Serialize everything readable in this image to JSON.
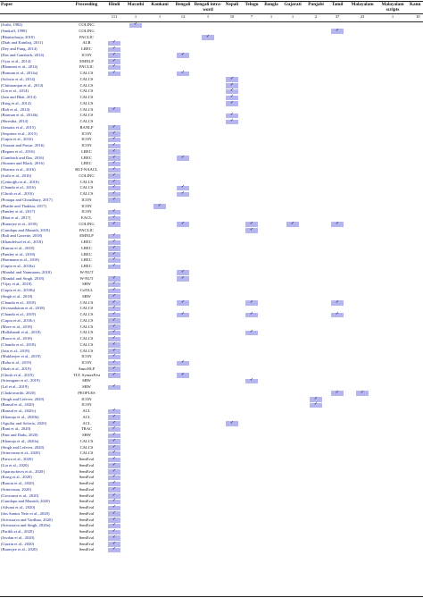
{
  "columns": {
    "paper": "Paper",
    "proceeding": "Proceeding",
    "languages": [
      {
        "key": "hindi",
        "label": "Hindi",
        "count": "111"
      },
      {
        "key": "marathi",
        "label": "Marathi",
        "count": "1"
      },
      {
        "key": "konkani",
        "label": "Konkani",
        "count": "1"
      },
      {
        "key": "bengali",
        "label": "Bengali",
        "count": "12"
      },
      {
        "key": "bengali_iw",
        "label": "Bengali intra-word",
        "count": "1"
      },
      {
        "key": "nepali",
        "label": "Nepali",
        "count": "10"
      },
      {
        "key": "telugu",
        "label": "Telugu",
        "count": "7"
      },
      {
        "key": "bangla",
        "label": "Bangla",
        "count": "1"
      },
      {
        "key": "gujarati",
        "label": "Gujarati",
        "count": "1"
      },
      {
        "key": "punjabi",
        "label": "Punjabi",
        "count": "2"
      },
      {
        "key": "tamil",
        "label": "Tamil",
        "count": "37"
      },
      {
        "key": "malayalam",
        "label": "Malayalam",
        "count": "23"
      },
      {
        "key": "malayalam_s",
        "label": "Malayalam scripts",
        "count": "1"
      },
      {
        "key": "kann",
        "label": "Kann",
        "count": "10"
      }
    ]
  },
  "check_symbol": "✓",
  "rows": [
    {
      "paper": "(Joshi, 1982)",
      "proc": "COLING",
      "langs": [
        "marathi"
      ]
    },
    {
      "paper": "(Sankoff, 1998)",
      "proc": "COLING",
      "langs": [
        "tamil"
      ]
    },
    {
      "paper": "(Bhattacharja, 2010)",
      "proc": "PACLIC",
      "langs": [
        "bengali_iw"
      ]
    },
    {
      "paper": "(Diab and Kamboj, 2011)",
      "proc": "ALR",
      "langs": [
        "hindi"
      ]
    },
    {
      "paper": "(Dey and Fung, 2014)",
      "proc": "LREC",
      "langs": [
        "hindi"
      ]
    },
    {
      "paper": "(Das and Gambäck, 2014)",
      "proc": "ICON",
      "langs": [
        "hindi",
        "bengali"
      ]
    },
    {
      "paper": "(Vyas et al., 2014)",
      "proc": "EMNLP",
      "langs": [
        "hindi"
      ]
    },
    {
      "paper": "(Bhamani et al., 2014)",
      "proc": "PACLIC",
      "langs": [
        "hindi"
      ]
    },
    {
      "paper": "(Barman et al., 2014a)",
      "proc": "CALCS",
      "langs": [
        "hindi",
        "bengali"
      ]
    },
    {
      "paper": "(Solorio et al., 2014)",
      "proc": "CALCS",
      "langs": [
        "nepali"
      ]
    },
    {
      "paper": "(Chittaranjan et al., 2014)",
      "proc": "CALCS",
      "langs": [
        "nepali"
      ]
    },
    {
      "paper": "(Lin et al., 2014)",
      "proc": "CALCS",
      "langs": [
        "nepali"
      ]
    },
    {
      "paper": "(Jain and Bhat, 2014)",
      "proc": "CALCS",
      "langs": [
        "nepali"
      ]
    },
    {
      "paper": "(King et al., 2014)",
      "proc": "CALCS",
      "langs": [
        "nepali"
      ]
    },
    {
      "paper": "(Bali et al., 2014)",
      "proc": "CALCS",
      "langs": [
        "hindi"
      ]
    },
    {
      "paper": "(Barman et al., 2014b)",
      "proc": "CALCS",
      "langs": [
        "nepali"
      ]
    },
    {
      "paper": "(Shrestha, 2014)",
      "proc": "CALCS",
      "langs": [
        "nepali"
      ]
    },
    {
      "paper": "(Jamatia et al., 2015)",
      "proc": "RANLP",
      "langs": [
        "hindi"
      ]
    },
    {
      "paper": "(Sequiera et al., 2015)",
      "proc": "ICON",
      "langs": [
        "hindi"
      ]
    },
    {
      "paper": "(Gupta et al., 2016)",
      "proc": "ICON",
      "langs": [
        "hindi"
      ]
    },
    {
      "paper": "(Assami and Pawar, 2016)",
      "proc": "ICON",
      "langs": [
        "hindi"
      ]
    },
    {
      "paper": "(Begum et al., 2016)",
      "proc": "LREC",
      "langs": [
        "hindi"
      ]
    },
    {
      "paper": "(Gambäck and Das, 2016)",
      "proc": "LREC",
      "langs": [
        "hindi",
        "bengali"
      ]
    },
    {
      "paper": "(Sitaram and Black, 2016)",
      "proc": "LREC",
      "langs": [
        "hindi"
      ]
    },
    {
      "paper": "(Sharma et al., 2016)",
      "proc": "HLT-NAACL",
      "langs": [
        "hindi"
      ]
    },
    {
      "paper": "(Joshi et al., 2016)",
      "proc": "COLING",
      "langs": [
        "hindi"
      ]
    },
    {
      "paper": "(Çetinoğlu et al., 2016)",
      "proc": "CALCS",
      "langs": [
        "hindi"
      ]
    },
    {
      "paper": "(Chandu et al., 2016)",
      "proc": "CALCS",
      "langs": [
        "hindi",
        "bengali"
      ]
    },
    {
      "paper": "(Ghosh et al., 2016)",
      "proc": "CALCS",
      "langs": [
        "hindi",
        "bengali"
      ]
    },
    {
      "paper": "(Pratapa and Choudhury, 2017)",
      "proc": "ICON",
      "langs": [
        "hindi"
      ]
    },
    {
      "paper": "(Phadte and Thakkar, 2017)",
      "proc": "ICON",
      "langs": [
        "konkani"
      ]
    },
    {
      "paper": "(Pandey et al., 2017)",
      "proc": "ICON",
      "langs": [
        "hindi"
      ]
    },
    {
      "paper": "(Bhat et al., 2017)",
      "proc": "EACL",
      "langs": [
        "hindi"
      ]
    },
    {
      "paper": "(Banerjee et al., 2018)",
      "proc": "COLING",
      "langs": [
        "hindi",
        "bengali",
        "telugu",
        "gujarati",
        "tamil"
      ]
    },
    {
      "paper": "(Gundapu and Mamidi, 2018)",
      "proc": "PACLIC",
      "langs": [
        "telugu"
      ]
    },
    {
      "paper": "(Bali and Garrette, 2018)",
      "proc": "EMNLP",
      "langs": [
        "hindi"
      ]
    },
    {
      "paper": "(Khandelwal et al., 2018)",
      "proc": "LREC",
      "langs": [
        "hindi"
      ]
    },
    {
      "paper": "(Kumar et al., 2018)",
      "proc": "LREC",
      "langs": [
        "hindi"
      ]
    },
    {
      "paper": "(Pandey et al., 2018)",
      "proc": "LREC",
      "langs": [
        "hindi"
      ]
    },
    {
      "paper": "(Hartmann et al., 2018)",
      "proc": "LREC",
      "langs": [
        "hindi"
      ]
    },
    {
      "paper": "(Gupta et al., 2018a)",
      "proc": "LREC",
      "langs": [
        "hindi"
      ]
    },
    {
      "paper": "(Mandal and Nanmaran, 2018)",
      "proc": "W-NUT",
      "langs": [
        "bengali"
      ]
    },
    {
      "paper": "(Mandal and Singh, 2018)",
      "proc": "W-NUT",
      "langs": [
        "hindi",
        "bengali"
      ]
    },
    {
      "paper": "(Vijay et al., 2018)",
      "proc": "SRW",
      "langs": [
        "hindi"
      ]
    },
    {
      "paper": "(Gupta et al., 2018b)",
      "proc": "CoNLL",
      "langs": [
        "hindi"
      ]
    },
    {
      "paper": "(Singh et al., 2018)",
      "proc": "SRW",
      "langs": [
        "hindi"
      ]
    },
    {
      "paper": "(Chandu et al., 2018)",
      "proc": "CALCS",
      "langs": [
        "hindi",
        "bengali",
        "telugu",
        "tamil"
      ]
    },
    {
      "paper": "(Sivasankaran et al., 2018)",
      "proc": "CALCS",
      "langs": [
        "hindi"
      ]
    },
    {
      "paper": "(Chandu et al., 2019)",
      "proc": "CALCS",
      "langs": [
        "hindi",
        "bengali",
        "telugu",
        "tamil"
      ]
    },
    {
      "paper": "(Gupta et al., 2018c)",
      "proc": "CALCS",
      "langs": [
        "hindi"
      ]
    },
    {
      "paper": "(Mave et al., 2018)",
      "proc": "CALCS",
      "langs": [
        "hindi"
      ]
    },
    {
      "paper": "(Rallabandi et al., 2018)",
      "proc": "CALCS",
      "langs": [
        "hindi",
        "telugu"
      ]
    },
    {
      "paper": "(Bawa et al., 2018)",
      "proc": "CALCS",
      "langs": [
        "hindi"
      ]
    },
    {
      "paper": "(Chandu et al., 2018)",
      "proc": "CALCS",
      "langs": [
        "hindi"
      ]
    },
    {
      "paper": "(Jain et al., 2018)",
      "proc": "CALCS",
      "langs": [
        "hindi"
      ]
    },
    {
      "paper": "(Mukherjee et al., 2019)",
      "proc": "ICON",
      "langs": [
        "hindi"
      ]
    },
    {
      "paper": "(Raha et al., 2019)",
      "proc": "ICON",
      "langs": [
        "hindi",
        "bengali"
      ]
    },
    {
      "paper": "(Shah et al., 2019)",
      "proc": "AnnoNLP",
      "langs": [
        "hindi"
      ]
    },
    {
      "paper": "(Ghosh et al., 2019)",
      "proc": "TLT, SyntaxFest",
      "langs": [
        "hindi",
        "bengali"
      ]
    },
    {
      "paper": "(Srirangam et al., 2019)",
      "proc": "SRW",
      "langs": [
        "telugu"
      ]
    },
    {
      "paper": "(Lal et al., 2019)",
      "proc": "SRW",
      "langs": [
        "hindi"
      ]
    },
    {
      "paper": "(Chakravarthi, 2020)",
      "proc": "PEOPLES",
      "langs": [
        "tamil",
        "malayalam"
      ]
    },
    {
      "paper": "(Singh and Lefever, 2020)",
      "proc": "ICON",
      "langs": [
        "punjabi"
      ]
    },
    {
      "paper": "(Bansal et al., 2020)",
      "proc": "ICON",
      "langs": [
        "punjabi"
      ]
    },
    {
      "paper": "(Bansal et al., 2020c)",
      "proc": "ACL",
      "langs": [
        "hindi"
      ]
    },
    {
      "paper": "(Khanuja et al., 2020b)",
      "proc": "ACL",
      "langs": [
        "hindi"
      ]
    },
    {
      "paper": "(Aguilar and Solorio, 2020)",
      "proc": "ACL",
      "langs": [
        "hindi",
        "nepali"
      ]
    },
    {
      "paper": "(Rani et al., 2020)",
      "proc": "TRAC",
      "langs": [
        "hindi"
      ]
    },
    {
      "paper": "(Pant and Dadu, 2020)",
      "proc": "SRW",
      "langs": [
        "hindi"
      ]
    },
    {
      "paper": "(Khanuja et al., 2020a)",
      "proc": "CALCS",
      "langs": [
        "hindi"
      ]
    },
    {
      "paper": "(Singh and Lefever, 2020)",
      "proc": "CALCS",
      "langs": [
        "hindi"
      ]
    },
    {
      "paper": "(Srinivasan et al., 2020)",
      "proc": "CALCS",
      "langs": [
        "hindi"
      ]
    },
    {
      "paper": "(Patwa et al., 2020)",
      "proc": "SemEval",
      "langs": [
        "hindi"
      ]
    },
    {
      "paper": "(Liu et al., 2020)",
      "proc": "SemEval",
      "langs": [
        "hindi"
      ]
    },
    {
      "paper": "(Aparaschivei et al., 2020)",
      "proc": "SemEval",
      "langs": [
        "hindi"
      ]
    },
    {
      "paper": "(Kong et al., 2020)",
      "proc": "SemEval",
      "langs": [
        "hindi"
      ]
    },
    {
      "paper": "(Baroiu et al., 2020)",
      "proc": "SemEval",
      "langs": [
        "hindi"
      ]
    },
    {
      "paper": "(Srinivasan, 2020)",
      "proc": "SemEval",
      "langs": [
        "hindi"
      ]
    },
    {
      "paper": "(Goswami et al., 2020)",
      "proc": "SemEval",
      "langs": [
        "hindi"
      ]
    },
    {
      "paper": "(Gundapu and Mamidi, 2020)",
      "proc": "SemEval",
      "langs": [
        "hindi"
      ]
    },
    {
      "paper": "(Advani et al., 2020)",
      "proc": "SemEval",
      "langs": [
        "hindi"
      ]
    },
    {
      "paper": "(dos Santos Neto et al., 2020)",
      "proc": "SemEval",
      "langs": [
        "hindi"
      ]
    },
    {
      "paper": "(Srivastava and Vardhan, 2020)",
      "proc": "SemEval",
      "langs": [
        "hindi"
      ]
    },
    {
      "paper": "(Srivastava and Singh, 2020a)",
      "proc": "SemEval",
      "langs": [
        "hindi"
      ]
    },
    {
      "paper": "(Parikh et al., 2020)",
      "proc": "SemEval",
      "langs": [
        "hindi"
      ]
    },
    {
      "paper": "(Javdan et al., 2020)",
      "proc": "SemEval",
      "langs": [
        "hindi"
      ]
    },
    {
      "paper": "(Garain et al., 2020)",
      "proc": "SemEval",
      "langs": [
        "hindi"
      ]
    },
    {
      "paper": "(Banerjee et al., 2020)",
      "proc": "SemEval",
      "langs": [
        "hindi"
      ]
    }
  ]
}
